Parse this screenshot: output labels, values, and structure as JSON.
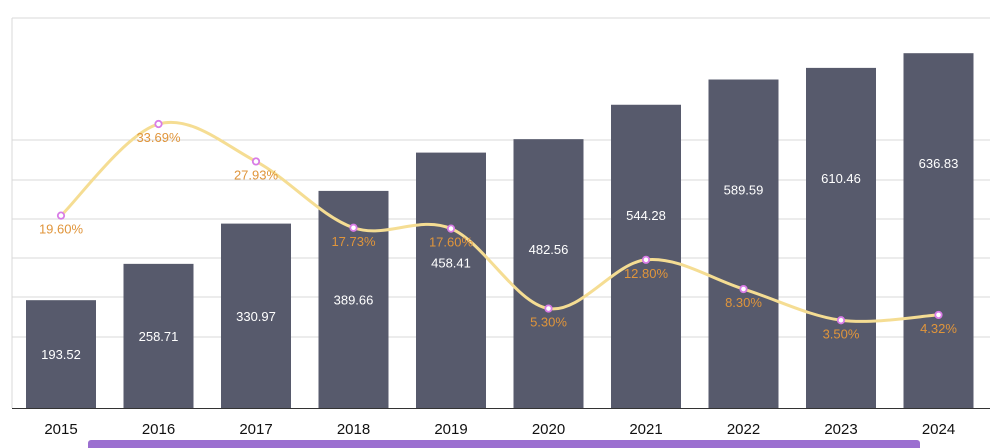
{
  "chart_data": {
    "type": "bar",
    "categories": [
      "2015",
      "2016",
      "2017",
      "2018",
      "2019",
      "2020",
      "2021",
      "2022",
      "2023",
      "2024"
    ],
    "series": [
      {
        "values": [
          193.52,
          258.71,
          330.97,
          389.66,
          458.41,
          482.56,
          544.28,
          589.59,
          610.46,
          636.83
        ]
      },
      {
        "type": "line",
        "values": [
          19.6,
          33.69,
          27.93,
          17.73,
          17.6,
          5.3,
          12.8,
          8.3,
          3.5,
          4.32
        ],
        "unit": "%"
      }
    ],
    "y_bar_range": [
      0,
      700
    ],
    "y_line_range": [
      -10,
      50
    ],
    "grid": true,
    "colors": {
      "bar": "#575a6c",
      "line": "#f5dd93",
      "line_marker": "#d87ce6",
      "pct_label": "#e0953b",
      "bar_label": "#ffffff",
      "accent_strip": "#9b6fd0"
    }
  }
}
